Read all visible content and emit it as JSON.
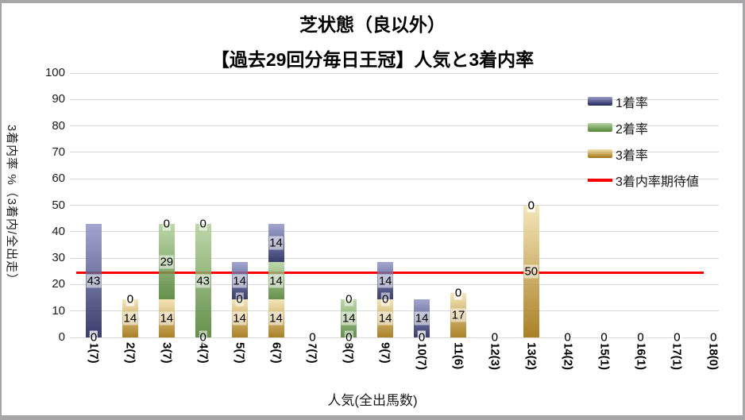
{
  "title": {
    "line1": "芝状態（良以外）",
    "line2": "【過去29回分毎日王冠】人気と3着内率"
  },
  "chart_data": {
    "type": "bar",
    "stacked": true,
    "title": "芝状態（良以外）【過去29回分毎日王冠】人気と3着内率",
    "xlabel": "人気(全出馬数)",
    "ylabel": "3着内率 %（3着内/全出走）",
    "ylim": [
      0,
      100
    ],
    "ytick_step": 10,
    "grid": true,
    "legend_position": "right-top",
    "categories": [
      "1(7)",
      "2(7)",
      "3(7)",
      "4(7)",
      "5(7)",
      "6(7)",
      "7(7)",
      "8(7)",
      "9(7)",
      "10(7)",
      "11(6)",
      "12(3)",
      "13(2)",
      "14(2)",
      "15(1)",
      "16(1)",
      "17(1)",
      "18(0)"
    ],
    "series": [
      {
        "name": "1着率",
        "color_top": "#9196c7",
        "color_bottom": "#171c54",
        "values": [
          42.9,
          0,
          0,
          0,
          14.3,
          14.3,
          0,
          0,
          14.3,
          14.3,
          0,
          0,
          0,
          0,
          0,
          0,
          0,
          0
        ],
        "labels": [
          "43",
          "0",
          "0",
          "0",
          "14",
          "14",
          "0",
          "0",
          "14",
          "14",
          "0",
          "0",
          "0",
          "0",
          "0",
          "0",
          "0",
          "0"
        ]
      },
      {
        "name": "2着率",
        "color_top": "#b1d19b",
        "color_bottom": "#4a7d2c",
        "values": [
          0,
          0,
          28.6,
          42.9,
          0,
          14.3,
          0,
          14.3,
          0,
          0,
          0,
          0,
          0,
          0,
          0,
          0,
          0,
          0
        ],
        "labels": [
          "0",
          "0",
          "29",
          "43",
          "0",
          "14",
          "0",
          "14",
          "0",
          "0",
          "0",
          "0",
          "0",
          "0",
          "0",
          "0",
          "0",
          "0"
        ]
      },
      {
        "name": "3着率",
        "color_top": "#f3e2ad",
        "color_bottom": "#9c6b00",
        "values": [
          0,
          14.3,
          14.3,
          0,
          14.3,
          14.3,
          0,
          0,
          14.3,
          0,
          16.7,
          0,
          50,
          0,
          0,
          0,
          0,
          0
        ],
        "labels": [
          "0",
          "14",
          "14",
          "0",
          "14",
          "14",
          "0",
          "0",
          "14",
          "0",
          "17",
          "0",
          "50",
          "0",
          "0",
          "0",
          "0",
          "0"
        ]
      }
    ],
    "reference_line": {
      "name": "3着内率期待値",
      "value": 24.6,
      "color": "#ff0000"
    }
  },
  "legend": {
    "entries": [
      {
        "label": "1着率",
        "series": 0,
        "type": "bar"
      },
      {
        "label": "2着率",
        "series": 1,
        "type": "bar"
      },
      {
        "label": "3着率",
        "series": 2,
        "type": "bar"
      },
      {
        "label": "3着内率期待値",
        "series": -1,
        "type": "line"
      }
    ]
  },
  "colors": {
    "frame": "#a8a5a8",
    "chart_background": "#ffffff",
    "gridline": "#d9d9d9",
    "reference_line": "#ff0000"
  }
}
